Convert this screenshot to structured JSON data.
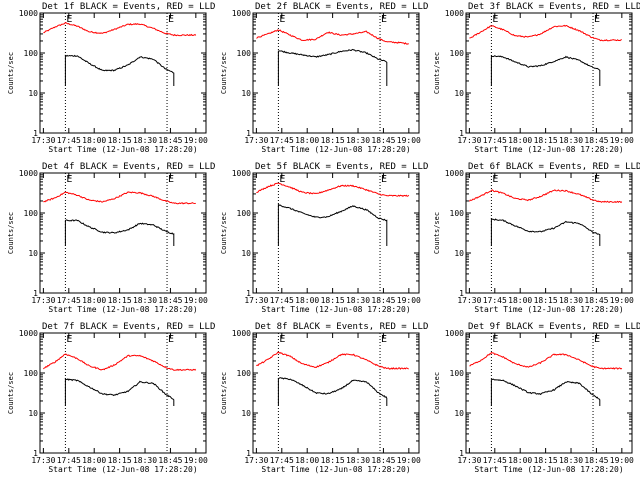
{
  "figure": {
    "xlabel": "Start Time (12-Jun-08 17:28:20)",
    "ylabel": "Counts/sec",
    "x_tick_labels": [
      "17:30",
      "17:45",
      "18:00",
      "18:15",
      "18:30",
      "18:45",
      "19:00"
    ],
    "y_tick_labels": [
      "1",
      "10",
      "100",
      "1000"
    ],
    "event_marker_label": "E",
    "colors": {
      "events": "#000000",
      "lld": "#ff0000",
      "axes": "#000000",
      "background": "#ffffff"
    }
  },
  "chart_data": [
    {
      "type": "line",
      "title": "Det 1f BLACK = Events, RED = LLD",
      "xlabel": "Start Time (12-Jun-08 17:28:20)",
      "ylabel": "Counts/sec",
      "yscale": "log",
      "ylim": [
        1,
        1000
      ],
      "x_ticks": [
        "17:30",
        "17:45",
        "18:00",
        "18:15",
        "18:30",
        "18:45",
        "19:00"
      ],
      "markers": [
        "17:43",
        "18:43"
      ],
      "x": [
        "17:30",
        "17:37",
        "17:43",
        "17:50",
        "17:57",
        "18:05",
        "18:12",
        "18:20",
        "18:27",
        "18:35",
        "18:42",
        "18:47",
        "18:55",
        "19:00"
      ],
      "series": [
        {
          "name": "LLD",
          "color": "#ff0000",
          "values": [
            320,
            450,
            560,
            470,
            340,
            310,
            390,
            520,
            530,
            410,
            310,
            280,
            280,
            280
          ]
        },
        {
          "name": "Events",
          "color": "#000000",
          "values": [
            null,
            null,
            85,
            85,
            55,
            36,
            37,
            50,
            80,
            70,
            40,
            32,
            null,
            null
          ]
        }
      ]
    },
    {
      "type": "line",
      "title": "Det 2f BLACK = Events, RED = LLD",
      "xlabel": "Start Time (12-Jun-08 17:28:20)",
      "ylabel": "Counts/sec",
      "yscale": "log",
      "ylim": [
        1,
        1000
      ],
      "x_ticks": [
        "17:30",
        "17:45",
        "18:00",
        "18:15",
        "18:30",
        "18:45",
        "19:00"
      ],
      "markers": [
        "17:43",
        "18:43"
      ],
      "x": [
        "17:30",
        "17:37",
        "17:43",
        "17:50",
        "17:57",
        "18:05",
        "18:12",
        "18:20",
        "18:27",
        "18:35",
        "18:42",
        "18:47",
        "18:55",
        "19:00"
      ],
      "series": [
        {
          "name": "LLD",
          "color": "#ff0000",
          "values": [
            240,
            300,
            380,
            280,
            210,
            220,
            330,
            280,
            300,
            340,
            230,
            190,
            180,
            170
          ]
        },
        {
          "name": "Events",
          "color": "#000000",
          "values": [
            null,
            null,
            115,
            100,
            90,
            80,
            90,
            110,
            120,
            100,
            70,
            60,
            null,
            null
          ]
        }
      ]
    },
    {
      "type": "line",
      "title": "Det 3f BLACK = Events, RED = LLD",
      "xlabel": "Start Time (12-Jun-08 17:28:20)",
      "ylabel": "Counts/sec",
      "yscale": "log",
      "ylim": [
        1,
        1000
      ],
      "x_ticks": [
        "17:30",
        "17:45",
        "18:00",
        "18:15",
        "18:30",
        "18:45",
        "19:00"
      ],
      "markers": [
        "17:43",
        "18:43"
      ],
      "x": [
        "17:30",
        "17:37",
        "17:43",
        "17:50",
        "17:57",
        "18:05",
        "18:12",
        "18:20",
        "18:27",
        "18:35",
        "18:42",
        "18:47",
        "18:55",
        "19:00"
      ],
      "series": [
        {
          "name": "LLD",
          "color": "#ff0000",
          "values": [
            230,
            340,
            480,
            380,
            270,
            250,
            300,
            460,
            480,
            360,
            250,
            210,
            210,
            210
          ]
        },
        {
          "name": "Events",
          "color": "#000000",
          "values": [
            null,
            null,
            85,
            80,
            60,
            45,
            48,
            62,
            80,
            65,
            45,
            38,
            null,
            null
          ]
        }
      ]
    },
    {
      "type": "line",
      "title": "Det 4f BLACK = Events, RED = LLD",
      "xlabel": "Start Time (12-Jun-08 17:28:20)",
      "ylabel": "Counts/sec",
      "yscale": "log",
      "ylim": [
        1,
        1000
      ],
      "x_ticks": [
        "17:30",
        "17:45",
        "18:00",
        "18:15",
        "18:30",
        "18:45",
        "19:00"
      ],
      "markers": [
        "17:43",
        "18:43"
      ],
      "x": [
        "17:30",
        "17:37",
        "17:43",
        "17:50",
        "17:57",
        "18:05",
        "18:12",
        "18:20",
        "18:27",
        "18:35",
        "18:42",
        "18:47",
        "18:55",
        "19:00"
      ],
      "series": [
        {
          "name": "LLD",
          "color": "#ff0000",
          "values": [
            190,
            240,
            330,
            280,
            210,
            190,
            230,
            330,
            320,
            260,
            200,
            175,
            175,
            175
          ]
        },
        {
          "name": "Events",
          "color": "#000000",
          "values": [
            null,
            null,
            65,
            65,
            45,
            33,
            32,
            38,
            55,
            50,
            35,
            30,
            null,
            null
          ]
        }
      ]
    },
    {
      "type": "line",
      "title": "Det 5f BLACK = Events, RED = LLD",
      "xlabel": "Start Time (12-Jun-08 17:28:20)",
      "ylabel": "Counts/sec",
      "yscale": "log",
      "ylim": [
        1,
        1000
      ],
      "x_ticks": [
        "17:30",
        "17:45",
        "18:00",
        "18:15",
        "18:30",
        "18:45",
        "19:00"
      ],
      "markers": [
        "17:43",
        "18:43"
      ],
      "x": [
        "17:30",
        "17:37",
        "17:43",
        "17:50",
        "17:57",
        "18:05",
        "18:12",
        "18:20",
        "18:27",
        "18:35",
        "18:42",
        "18:47",
        "18:55",
        "19:00"
      ],
      "series": [
        {
          "name": "LLD",
          "color": "#ff0000",
          "values": [
            330,
            460,
            560,
            440,
            330,
            300,
            370,
            480,
            480,
            380,
            300,
            270,
            270,
            270
          ]
        },
        {
          "name": "Events",
          "color": "#000000",
          "values": [
            null,
            null,
            160,
            130,
            100,
            78,
            80,
            110,
            150,
            120,
            75,
            65,
            null,
            null
          ]
        }
      ]
    },
    {
      "type": "line",
      "title": "Det 6f BLACK = Events, RED = LLD",
      "xlabel": "Start Time (12-Jun-08 17:28:20)",
      "ylabel": "Counts/sec",
      "yscale": "log",
      "ylim": [
        1,
        1000
      ],
      "x_ticks": [
        "17:30",
        "17:45",
        "18:00",
        "18:15",
        "18:30",
        "18:45",
        "19:00"
      ],
      "markers": [
        "17:43",
        "18:43"
      ],
      "x": [
        "17:30",
        "17:37",
        "17:43",
        "17:50",
        "17:57",
        "18:05",
        "18:12",
        "18:20",
        "18:27",
        "18:35",
        "18:42",
        "18:47",
        "18:55",
        "19:00"
      ],
      "series": [
        {
          "name": "LLD",
          "color": "#ff0000",
          "values": [
            200,
            270,
            370,
            310,
            230,
            210,
            260,
            370,
            360,
            290,
            220,
            190,
            190,
            190
          ]
        },
        {
          "name": "Events",
          "color": "#000000",
          "values": [
            null,
            null,
            70,
            65,
            48,
            35,
            34,
            42,
            60,
            55,
            35,
            28,
            null,
            null
          ]
        }
      ]
    },
    {
      "type": "line",
      "title": "Det 7f BLACK = Events, RED = LLD",
      "xlabel": "Start Time (12-Jun-08 17:28:20)",
      "ylabel": "Counts/sec",
      "yscale": "log",
      "ylim": [
        1,
        1000
      ],
      "x_ticks": [
        "17:30",
        "17:45",
        "18:00",
        "18:15",
        "18:30",
        "18:45",
        "19:00"
      ],
      "markers": [
        "17:43",
        "18:43"
      ],
      "x": [
        "17:30",
        "17:37",
        "17:43",
        "17:50",
        "17:57",
        "18:05",
        "18:12",
        "18:20",
        "18:27",
        "18:35",
        "18:42",
        "18:47",
        "18:55",
        "19:00"
      ],
      "series": [
        {
          "name": "LLD",
          "color": "#ff0000",
          "values": [
            130,
            190,
            300,
            230,
            150,
            120,
            160,
            270,
            270,
            200,
            140,
            120,
            120,
            120
          ]
        },
        {
          "name": "Events",
          "color": "#000000",
          "values": [
            null,
            null,
            70,
            65,
            45,
            30,
            28,
            35,
            60,
            55,
            30,
            22,
            null,
            null
          ]
        }
      ]
    },
    {
      "type": "line",
      "title": "Det 8f BLACK = Events, RED = LLD",
      "xlabel": "Start Time (12-Jun-08 17:28:20)",
      "ylabel": "Counts/sec",
      "yscale": "log",
      "ylim": [
        1,
        1000
      ],
      "x_ticks": [
        "17:30",
        "17:45",
        "18:00",
        "18:15",
        "18:30",
        "18:45",
        "19:00"
      ],
      "markers": [
        "17:43",
        "18:43"
      ],
      "x": [
        "17:30",
        "17:37",
        "17:43",
        "17:50",
        "17:57",
        "18:05",
        "18:12",
        "18:20",
        "18:27",
        "18:35",
        "18:42",
        "18:47",
        "18:55",
        "19:00"
      ],
      "series": [
        {
          "name": "LLD",
          "color": "#ff0000",
          "values": [
            150,
            220,
            330,
            260,
            170,
            140,
            180,
            290,
            290,
            210,
            150,
            130,
            130,
            130
          ]
        },
        {
          "name": "Events",
          "color": "#000000",
          "values": [
            null,
            null,
            75,
            70,
            50,
            32,
            30,
            40,
            65,
            60,
            32,
            24,
            null,
            null
          ]
        }
      ]
    },
    {
      "type": "line",
      "title": "Det 9f BLACK = Events, RED = LLD",
      "xlabel": "Start Time (12-Jun-08 17:28:20)",
      "ylabel": "Counts/sec",
      "yscale": "log",
      "ylim": [
        1,
        1000
      ],
      "x_ticks": [
        "17:30",
        "17:45",
        "18:00",
        "18:15",
        "18:30",
        "18:45",
        "19:00"
      ],
      "markers": [
        "17:43",
        "18:43"
      ],
      "x": [
        "17:30",
        "17:37",
        "17:43",
        "17:50",
        "17:57",
        "18:05",
        "18:12",
        "18:20",
        "18:27",
        "18:35",
        "18:42",
        "18:47",
        "18:55",
        "19:00"
      ],
      "series": [
        {
          "name": "LLD",
          "color": "#ff0000",
          "values": [
            150,
            210,
            320,
            250,
            170,
            140,
            180,
            290,
            290,
            210,
            150,
            130,
            130,
            130
          ]
        },
        {
          "name": "Events",
          "color": "#000000",
          "values": [
            null,
            null,
            70,
            65,
            48,
            32,
            30,
            38,
            60,
            55,
            30,
            22,
            null,
            null
          ]
        }
      ]
    }
  ]
}
